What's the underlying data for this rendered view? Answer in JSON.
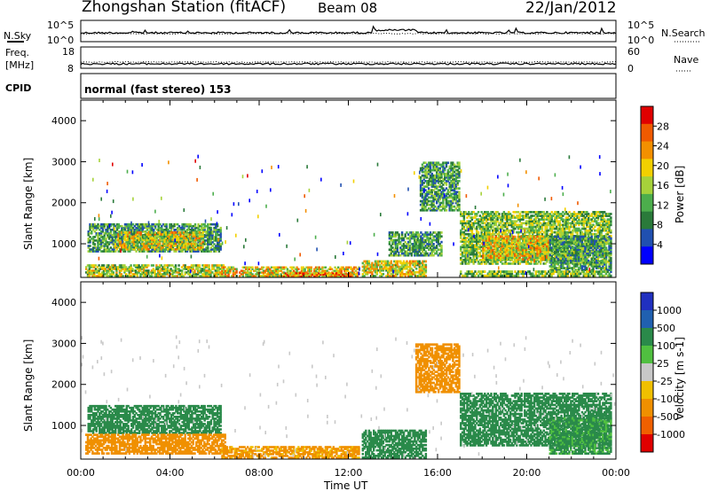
{
  "header": {
    "title": "Zhongshan Station (fitACF)",
    "beam": "Beam 08",
    "date": "22/Jan/2012"
  },
  "noise_panel": {
    "left_label": "N.Sky",
    "right_label": "N.Search",
    "left_ticks": [
      "10^5",
      "10^0"
    ],
    "right_ticks": [
      "10^5",
      "10^0"
    ]
  },
  "freq_panel": {
    "left_label_1": "Freq.",
    "left_label_2": "[MHz]",
    "right_label": "Nave",
    "left_ticks": [
      "18",
      "8"
    ],
    "right_ticks": [
      "60",
      "0"
    ]
  },
  "cpid": {
    "label": "CPID",
    "mode": "normal (fast stereo) 153"
  },
  "colors": {
    "power_scale": [
      "#0000ff",
      "#2050b0",
      "#2a7a3a",
      "#4cae4c",
      "#a6d23a",
      "#f2d000",
      "#f39000",
      "#f05a00",
      "#e00000"
    ],
    "velocity_scale": [
      "#2030c0",
      "#2060b0",
      "#2a8a4a",
      "#50c040",
      "#c8c8c8",
      "#f0c000",
      "#f09000",
      "#f06000",
      "#e00000"
    ]
  },
  "chart_data": [
    {
      "type": "heatmap",
      "name": "power",
      "ylabel": "Slant Range [km]",
      "yticks": [
        "1000",
        "2000",
        "3000",
        "4000"
      ],
      "ylim": [
        180,
        4500
      ],
      "xlim": [
        "00:00",
        "24:00"
      ],
      "colorbar_label": "Power [dB]",
      "colorbar_ticks": [
        "4",
        "8",
        "12",
        "16",
        "20",
        "24",
        "28"
      ],
      "colorbar_range": [
        0,
        32
      ],
      "features": [
        {
          "t0": 0.3,
          "t1": 6.3,
          "r0": 800,
          "r1": 1500,
          "level": 12
        },
        {
          "t0": 1.5,
          "t1": 5.5,
          "r0": 850,
          "r1": 1300,
          "level": 20
        },
        {
          "t0": 0.2,
          "t1": 6.5,
          "r0": 200,
          "r1": 500,
          "level": 18
        },
        {
          "t0": 6.3,
          "t1": 12.5,
          "r0": 200,
          "r1": 450,
          "level": 22
        },
        {
          "t0": 9.0,
          "t1": 12.2,
          "r0": 200,
          "r1": 300,
          "level": 28
        },
        {
          "t0": 12.6,
          "t1": 15.5,
          "r0": 200,
          "r1": 600,
          "level": 20
        },
        {
          "t0": 13.8,
          "t1": 16.2,
          "r0": 700,
          "r1": 1300,
          "level": 12
        },
        {
          "t0": 15.2,
          "t1": 17.0,
          "r0": 1800,
          "r1": 3000,
          "level": 12
        },
        {
          "t0": 17.0,
          "t1": 23.8,
          "r0": 500,
          "r1": 1800,
          "level": 16
        },
        {
          "t0": 18.0,
          "t1": 21.0,
          "r0": 600,
          "r1": 1200,
          "level": 22
        },
        {
          "t0": 21.0,
          "t1": 23.8,
          "r0": 300,
          "r1": 1200,
          "level": 12
        },
        {
          "t0": 17.0,
          "t1": 23.8,
          "r0": 200,
          "r1": 350,
          "level": 16
        }
      ]
    },
    {
      "type": "heatmap",
      "name": "velocity",
      "ylabel": "Slant Range [km]",
      "yticks": [
        "1000",
        "2000",
        "3000",
        "4000"
      ],
      "ylim": [
        180,
        4500
      ],
      "xlim": [
        "00:00",
        "24:00"
      ],
      "xticks": [
        "00:00",
        "04:00",
        "08:00",
        "12:00",
        "16:00",
        "20:00",
        "00:00"
      ],
      "xlabel": "Time UT",
      "colorbar_label": "Velocity [m s-1]",
      "colorbar_ticks": [
        "1000",
        "500",
        "100",
        "25",
        "-25",
        "-100",
        "-500",
        "-1000"
      ],
      "colorbar_range": [
        -1000,
        1000
      ],
      "features": [
        {
          "t0": 0.3,
          "t1": 6.3,
          "r0": 800,
          "r1": 1500,
          "level": 150
        },
        {
          "t0": 0.2,
          "t1": 6.5,
          "r0": 300,
          "r1": 800,
          "level": -150
        },
        {
          "t0": 6.3,
          "t1": 12.5,
          "r0": 200,
          "r1": 500,
          "level": -120
        },
        {
          "t0": 12.6,
          "t1": 15.5,
          "r0": 200,
          "r1": 900,
          "level": 300
        },
        {
          "t0": 15.0,
          "t1": 17.0,
          "r0": 1800,
          "r1": 3000,
          "level": -300
        },
        {
          "t0": 17.0,
          "t1": 23.8,
          "r0": 500,
          "r1": 1800,
          "level": 200
        },
        {
          "t0": 21.0,
          "t1": 23.8,
          "r0": 300,
          "r1": 1200,
          "level": 120
        }
      ]
    }
  ]
}
